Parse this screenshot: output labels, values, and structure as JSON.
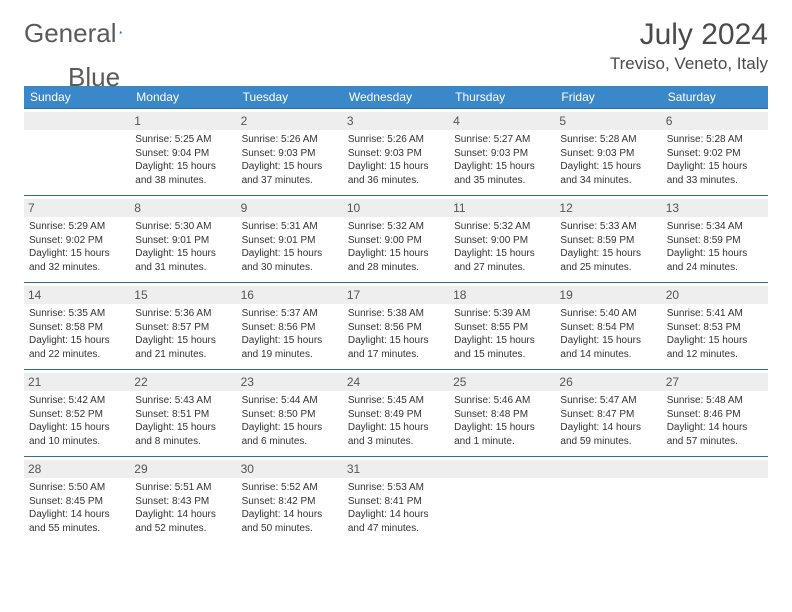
{
  "logo": {
    "text1": "General",
    "text2": "Blue"
  },
  "title": "July 2024",
  "location": "Treviso, Veneto, Italy",
  "colors": {
    "header_bg": "#3a87c9",
    "header_text": "#ffffff",
    "daynum_bg": "#eeeeee",
    "border": "#2e6ba0",
    "logo_shape": "#2f6fa8"
  },
  "day_headers": [
    "Sunday",
    "Monday",
    "Tuesday",
    "Wednesday",
    "Thursday",
    "Friday",
    "Saturday"
  ],
  "weeks": [
    [
      {
        "blank": true
      },
      {
        "n": "1",
        "sunrise": "5:25 AM",
        "sunset": "9:04 PM",
        "daylight": "15 hours and 38 minutes."
      },
      {
        "n": "2",
        "sunrise": "5:26 AM",
        "sunset": "9:03 PM",
        "daylight": "15 hours and 37 minutes."
      },
      {
        "n": "3",
        "sunrise": "5:26 AM",
        "sunset": "9:03 PM",
        "daylight": "15 hours and 36 minutes."
      },
      {
        "n": "4",
        "sunrise": "5:27 AM",
        "sunset": "9:03 PM",
        "daylight": "15 hours and 35 minutes."
      },
      {
        "n": "5",
        "sunrise": "5:28 AM",
        "sunset": "9:03 PM",
        "daylight": "15 hours and 34 minutes."
      },
      {
        "n": "6",
        "sunrise": "5:28 AM",
        "sunset": "9:02 PM",
        "daylight": "15 hours and 33 minutes."
      }
    ],
    [
      {
        "n": "7",
        "sunrise": "5:29 AM",
        "sunset": "9:02 PM",
        "daylight": "15 hours and 32 minutes."
      },
      {
        "n": "8",
        "sunrise": "5:30 AM",
        "sunset": "9:01 PM",
        "daylight": "15 hours and 31 minutes."
      },
      {
        "n": "9",
        "sunrise": "5:31 AM",
        "sunset": "9:01 PM",
        "daylight": "15 hours and 30 minutes."
      },
      {
        "n": "10",
        "sunrise": "5:32 AM",
        "sunset": "9:00 PM",
        "daylight": "15 hours and 28 minutes."
      },
      {
        "n": "11",
        "sunrise": "5:32 AM",
        "sunset": "9:00 PM",
        "daylight": "15 hours and 27 minutes."
      },
      {
        "n": "12",
        "sunrise": "5:33 AM",
        "sunset": "8:59 PM",
        "daylight": "15 hours and 25 minutes."
      },
      {
        "n": "13",
        "sunrise": "5:34 AM",
        "sunset": "8:59 PM",
        "daylight": "15 hours and 24 minutes."
      }
    ],
    [
      {
        "n": "14",
        "sunrise": "5:35 AM",
        "sunset": "8:58 PM",
        "daylight": "15 hours and 22 minutes."
      },
      {
        "n": "15",
        "sunrise": "5:36 AM",
        "sunset": "8:57 PM",
        "daylight": "15 hours and 21 minutes."
      },
      {
        "n": "16",
        "sunrise": "5:37 AM",
        "sunset": "8:56 PM",
        "daylight": "15 hours and 19 minutes."
      },
      {
        "n": "17",
        "sunrise": "5:38 AM",
        "sunset": "8:56 PM",
        "daylight": "15 hours and 17 minutes."
      },
      {
        "n": "18",
        "sunrise": "5:39 AM",
        "sunset": "8:55 PM",
        "daylight": "15 hours and 15 minutes."
      },
      {
        "n": "19",
        "sunrise": "5:40 AM",
        "sunset": "8:54 PM",
        "daylight": "15 hours and 14 minutes."
      },
      {
        "n": "20",
        "sunrise": "5:41 AM",
        "sunset": "8:53 PM",
        "daylight": "15 hours and 12 minutes."
      }
    ],
    [
      {
        "n": "21",
        "sunrise": "5:42 AM",
        "sunset": "8:52 PM",
        "daylight": "15 hours and 10 minutes."
      },
      {
        "n": "22",
        "sunrise": "5:43 AM",
        "sunset": "8:51 PM",
        "daylight": "15 hours and 8 minutes."
      },
      {
        "n": "23",
        "sunrise": "5:44 AM",
        "sunset": "8:50 PM",
        "daylight": "15 hours and 6 minutes."
      },
      {
        "n": "24",
        "sunrise": "5:45 AM",
        "sunset": "8:49 PM",
        "daylight": "15 hours and 3 minutes."
      },
      {
        "n": "25",
        "sunrise": "5:46 AM",
        "sunset": "8:48 PM",
        "daylight": "15 hours and 1 minute."
      },
      {
        "n": "26",
        "sunrise": "5:47 AM",
        "sunset": "8:47 PM",
        "daylight": "14 hours and 59 minutes."
      },
      {
        "n": "27",
        "sunrise": "5:48 AM",
        "sunset": "8:46 PM",
        "daylight": "14 hours and 57 minutes."
      }
    ],
    [
      {
        "n": "28",
        "sunrise": "5:50 AM",
        "sunset": "8:45 PM",
        "daylight": "14 hours and 55 minutes."
      },
      {
        "n": "29",
        "sunrise": "5:51 AM",
        "sunset": "8:43 PM",
        "daylight": "14 hours and 52 minutes."
      },
      {
        "n": "30",
        "sunrise": "5:52 AM",
        "sunset": "8:42 PM",
        "daylight": "14 hours and 50 minutes."
      },
      {
        "n": "31",
        "sunrise": "5:53 AM",
        "sunset": "8:41 PM",
        "daylight": "14 hours and 47 minutes."
      },
      {
        "blank": true
      },
      {
        "blank": true
      },
      {
        "blank": true
      }
    ]
  ]
}
